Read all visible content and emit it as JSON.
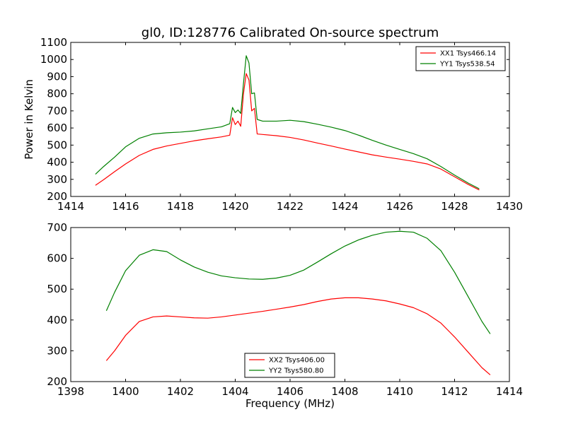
{
  "chart_data": [
    {
      "type": "line",
      "title": "gl0, ID:128776 Calibrated On-source spectrum",
      "xlabel": "",
      "ylabel": "Power in Kelvin",
      "xlim": [
        1414,
        1430
      ],
      "ylim": [
        200,
        1100
      ],
      "xticks": [
        1414,
        1416,
        1418,
        1420,
        1422,
        1424,
        1426,
        1428,
        1430
      ],
      "yticks": [
        200,
        300,
        400,
        500,
        600,
        700,
        800,
        900,
        1000,
        1100
      ],
      "grid": false,
      "legend_position": "top-right",
      "series": [
        {
          "name": "XX1 Tsys466.14",
          "color": "#ff0000",
          "x": [
            1414.9,
            1415.2,
            1415.6,
            1416.0,
            1416.5,
            1417.0,
            1417.5,
            1418.0,
            1418.5,
            1419.0,
            1419.5,
            1419.8,
            1419.9,
            1420.0,
            1420.1,
            1420.2,
            1420.3,
            1420.4,
            1420.5,
            1420.6,
            1420.7,
            1420.8,
            1421.0,
            1421.5,
            1422.0,
            1422.5,
            1423.0,
            1423.5,
            1424.0,
            1424.5,
            1425.0,
            1425.5,
            1426.0,
            1426.5,
            1427.0,
            1427.5,
            1428.0,
            1428.5,
            1428.9
          ],
          "values": [
            265,
            298,
            345,
            390,
            440,
            475,
            495,
            510,
            525,
            537,
            548,
            558,
            660,
            620,
            640,
            610,
            800,
            918,
            880,
            700,
            715,
            565,
            562,
            555,
            545,
            530,
            512,
            495,
            477,
            460,
            443,
            430,
            418,
            405,
            390,
            360,
            315,
            270,
            238
          ]
        },
        {
          "name": "YY1 Tsys538.54",
          "color": "#008000",
          "x": [
            1414.9,
            1415.2,
            1415.6,
            1416.0,
            1416.5,
            1417.0,
            1417.5,
            1418.0,
            1418.5,
            1419.0,
            1419.5,
            1419.8,
            1419.9,
            1420.0,
            1420.1,
            1420.2,
            1420.3,
            1420.4,
            1420.5,
            1420.6,
            1420.7,
            1420.8,
            1421.0,
            1421.5,
            1422.0,
            1422.5,
            1423.0,
            1423.5,
            1424.0,
            1424.5,
            1425.0,
            1425.5,
            1426.0,
            1426.5,
            1427.0,
            1427.5,
            1428.0,
            1428.5,
            1428.9
          ],
          "values": [
            330,
            375,
            430,
            490,
            540,
            565,
            572,
            576,
            583,
            595,
            607,
            625,
            720,
            690,
            705,
            685,
            860,
            1022,
            980,
            800,
            805,
            650,
            640,
            640,
            645,
            637,
            622,
            605,
            585,
            558,
            528,
            500,
            475,
            450,
            420,
            375,
            325,
            278,
            245
          ]
        }
      ]
    },
    {
      "type": "line",
      "title": "",
      "xlabel": "Frequency (MHz)",
      "ylabel": "",
      "xlim": [
        1398,
        1414
      ],
      "ylim": [
        200,
        700
      ],
      "xticks": [
        1398,
        1400,
        1402,
        1404,
        1406,
        1408,
        1410,
        1412,
        1414
      ],
      "yticks": [
        200,
        300,
        400,
        500,
        600,
        700
      ],
      "grid": false,
      "legend_position": "bottom-center",
      "series": [
        {
          "name": "XX2 Tsys406.00",
          "color": "#ff0000",
          "x": [
            1399.3,
            1399.6,
            1400.0,
            1400.5,
            1401.0,
            1401.5,
            1402.0,
            1402.5,
            1403.0,
            1403.5,
            1404.0,
            1404.5,
            1405.0,
            1405.5,
            1406.0,
            1406.5,
            1407.0,
            1407.5,
            1408.0,
            1408.5,
            1409.0,
            1409.5,
            1410.0,
            1410.5,
            1411.0,
            1411.5,
            1412.0,
            1412.5,
            1413.0,
            1413.3
          ],
          "values": [
            268,
            300,
            350,
            395,
            410,
            413,
            410,
            407,
            406,
            410,
            416,
            422,
            428,
            435,
            442,
            450,
            460,
            468,
            472,
            472,
            468,
            462,
            452,
            440,
            420,
            390,
            345,
            295,
            245,
            222
          ]
        },
        {
          "name": "YY2 Tsys580.80",
          "color": "#008000",
          "x": [
            1399.3,
            1399.6,
            1400.0,
            1400.5,
            1401.0,
            1401.5,
            1402.0,
            1402.5,
            1403.0,
            1403.5,
            1404.0,
            1404.5,
            1405.0,
            1405.5,
            1406.0,
            1406.5,
            1407.0,
            1407.5,
            1408.0,
            1408.5,
            1409.0,
            1409.5,
            1410.0,
            1410.5,
            1411.0,
            1411.5,
            1412.0,
            1412.5,
            1413.0,
            1413.3
          ],
          "values": [
            430,
            490,
            560,
            610,
            628,
            622,
            595,
            572,
            555,
            543,
            537,
            533,
            532,
            536,
            545,
            562,
            588,
            615,
            640,
            660,
            675,
            685,
            688,
            685,
            665,
            625,
            555,
            475,
            395,
            355
          ]
        }
      ]
    }
  ]
}
